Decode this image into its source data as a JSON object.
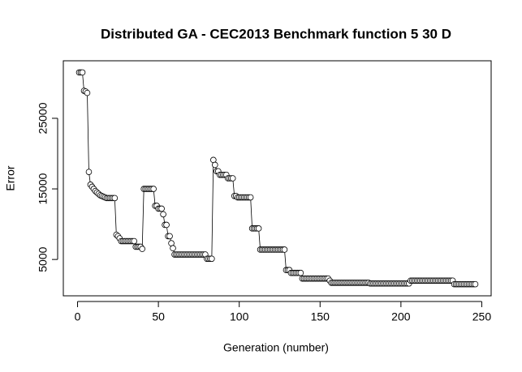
{
  "chart_data": {
    "type": "scatter-line",
    "title": "Distributed GA - CEC2013 Benchmark function  5 30 D",
    "xlabel": "Generation (number)",
    "ylabel": "Error",
    "color": "#000000",
    "xlim": [
      -8.8,
      255.8
    ],
    "ylim": [
      -150,
      33150
    ],
    "xticks": [
      0,
      50,
      100,
      150,
      200,
      250
    ],
    "yticks": [
      5000,
      15000,
      25000
    ],
    "x": [
      1,
      2,
      3,
      4,
      5,
      6,
      7,
      8,
      9,
      10,
      11,
      12,
      13,
      14,
      15,
      16,
      17,
      18,
      19,
      20,
      21,
      22,
      23,
      24,
      25,
      26,
      27,
      28,
      29,
      30,
      31,
      32,
      33,
      34,
      35,
      36,
      37,
      38,
      39,
      40,
      41,
      42,
      43,
      44,
      45,
      46,
      47,
      48,
      49,
      50,
      51,
      52,
      53,
      54,
      55,
      56,
      57,
      58,
      59,
      60,
      61,
      62,
      63,
      64,
      65,
      66,
      67,
      68,
      69,
      70,
      71,
      72,
      73,
      74,
      75,
      76,
      77,
      78,
      79,
      80,
      81,
      82,
      83,
      84,
      85,
      86,
      87,
      88,
      89,
      90,
      91,
      92,
      93,
      94,
      95,
      96,
      97,
      98,
      99,
      100,
      101,
      102,
      103,
      104,
      105,
      106,
      107,
      108,
      109,
      110,
      111,
      112,
      113,
      114,
      115,
      116,
      117,
      118,
      119,
      120,
      121,
      122,
      123,
      124,
      125,
      126,
      127,
      128,
      129,
      130,
      131,
      132,
      133,
      134,
      135,
      136,
      137,
      138,
      139,
      140,
      141,
      142,
      143,
      144,
      145,
      146,
      147,
      148,
      149,
      150,
      151,
      152,
      153,
      154,
      155,
      156,
      157,
      158,
      159,
      160,
      161,
      162,
      163,
      164,
      165,
      166,
      167,
      168,
      169,
      170,
      171,
      172,
      173,
      174,
      175,
      176,
      177,
      178,
      179,
      180,
      181,
      182,
      183,
      184,
      185,
      186,
      187,
      188,
      189,
      190,
      191,
      192,
      193,
      194,
      195,
      196,
      197,
      198,
      199,
      200,
      201,
      202,
      203,
      204,
      205,
      206,
      207,
      208,
      209,
      210,
      211,
      212,
      213,
      214,
      215,
      216,
      217,
      218,
      219,
      220,
      221,
      222,
      223,
      224,
      225,
      226,
      227,
      228,
      229,
      230,
      231,
      232,
      233,
      234,
      235,
      236,
      237,
      238,
      239,
      240,
      241,
      242,
      243,
      244,
      245,
      246
    ],
    "values": [
      31500,
      31500,
      31500,
      28900,
      28800,
      28600,
      17400,
      15600,
      15300,
      15000,
      14700,
      14500,
      14300,
      14100,
      14000,
      13900,
      13800,
      13700,
      13700,
      13700,
      13700,
      13700,
      13700,
      8500,
      8300,
      8000,
      7600,
      7600,
      7600,
      7600,
      7600,
      7600,
      7600,
      7600,
      7600,
      6800,
      6800,
      6800,
      6800,
      6500,
      15000,
      15000,
      15000,
      15000,
      15000,
      15000,
      15000,
      12600,
      12600,
      12200,
      12200,
      12200,
      11400,
      9900,
      9900,
      8300,
      8300,
      7300,
      6600,
      5700,
      5700,
      5700,
      5700,
      5700,
      5700,
      5700,
      5700,
      5700,
      5700,
      5700,
      5700,
      5700,
      5700,
      5700,
      5700,
      5700,
      5700,
      5700,
      5700,
      5100,
      5100,
      5100,
      5100,
      19100,
      18400,
      17500,
      17500,
      17000,
      17000,
      17000,
      17000,
      17000,
      16500,
      16500,
      16500,
      16500,
      14000,
      14000,
      13800,
      13800,
      13800,
      13800,
      13800,
      13800,
      13800,
      13800,
      13800,
      9400,
      9400,
      9400,
      9400,
      9400,
      6400,
      6400,
      6400,
      6400,
      6400,
      6400,
      6400,
      6400,
      6400,
      6400,
      6400,
      6400,
      6400,
      6400,
      6400,
      6400,
      3500,
      3500,
      3500,
      3100,
      3100,
      3100,
      3100,
      3100,
      3100,
      3100,
      2300,
      2300,
      2300,
      2300,
      2300,
      2300,
      2300,
      2300,
      2300,
      2300,
      2300,
      2300,
      2300,
      2300,
      2300,
      2300,
      2300,
      2000,
      1700,
      1700,
      1700,
      1700,
      1700,
      1700,
      1700,
      1700,
      1700,
      1700,
      1700,
      1700,
      1700,
      1700,
      1700,
      1700,
      1700,
      1700,
      1700,
      1700,
      1700,
      1700,
      1700,
      1700,
      1600,
      1600,
      1600,
      1600,
      1600,
      1600,
      1600,
      1600,
      1600,
      1600,
      1600,
      1600,
      1600,
      1600,
      1600,
      1600,
      1600,
      1600,
      1600,
      1600,
      1600,
      1600,
      1600,
      1600,
      1600,
      2000,
      2000,
      2000,
      2000,
      2000,
      2000,
      2000,
      2000,
      2000,
      2000,
      2000,
      2000,
      2000,
      2000,
      2000,
      2000,
      2000,
      2000,
      2000,
      2000,
      2000,
      2000,
      2000,
      2000,
      2000,
      2000,
      2000,
      1500,
      1500,
      1500,
      1500,
      1500,
      1500,
      1500,
      1500,
      1500,
      1500,
      1500,
      1500,
      1500,
      1500
    ]
  }
}
